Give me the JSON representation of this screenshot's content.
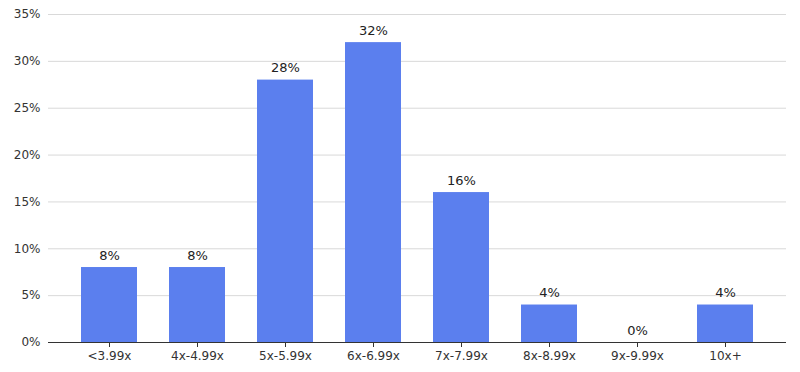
{
  "chart_data": {
    "type": "bar",
    "categories": [
      "<3.99x",
      "4x-4.99x",
      "5x-5.99x",
      "6x-6.99x",
      "7x-7.99x",
      "8x-8.99x",
      "9x-9.99x",
      "10x+"
    ],
    "values": [
      8,
      8,
      28,
      32,
      16,
      4,
      0,
      4
    ],
    "value_labels": [
      "8%",
      "8%",
      "28%",
      "32%",
      "16%",
      "4%",
      "0%",
      "4%"
    ],
    "color": "#5b7fee",
    "ylim": [
      0,
      35
    ],
    "yticks": [
      {
        "value": 0,
        "label": "0%"
      },
      {
        "value": 5,
        "label": "5%"
      },
      {
        "value": 10,
        "label": "10%"
      },
      {
        "value": 15,
        "label": "15%"
      },
      {
        "value": 20,
        "label": "20%"
      },
      {
        "value": 25,
        "label": "25%"
      },
      {
        "value": 30,
        "label": "30%"
      },
      {
        "value": 35,
        "label": "35%"
      }
    ],
    "grid": true,
    "data_labels": true
  }
}
